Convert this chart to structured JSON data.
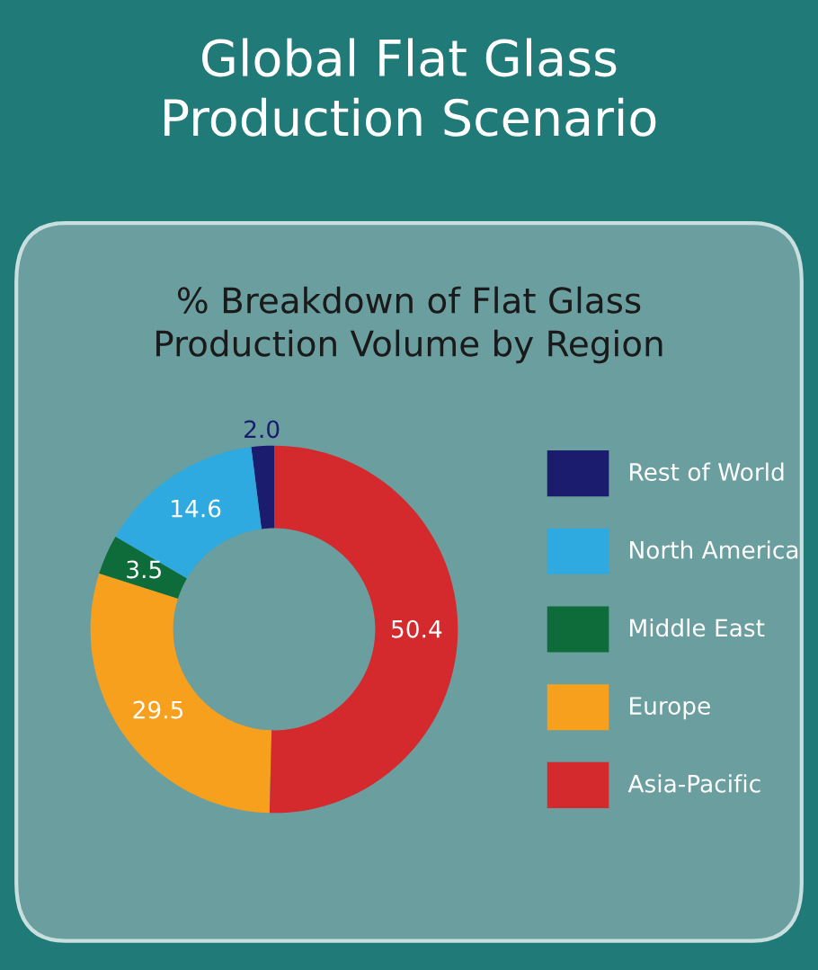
{
  "chart_data": {
    "type": "donut",
    "title": "Global Flat Glass\nProduction Scenario",
    "subtitle": "% Breakdown of Flat Glass\nProduction Volume by Region",
    "categories": [
      "Rest of World",
      "North America",
      "Middle East",
      "Europe",
      "Asia-Pacific"
    ],
    "values": [
      2.0,
      14.6,
      3.5,
      29.5,
      50.4
    ],
    "value_labels": [
      "2.0",
      "14.6",
      "3.5",
      "29.5",
      "50.4"
    ],
    "colors": [
      "#1c1c6e",
      "#2eaae1",
      "#0e6b3a",
      "#f7a01e",
      "#d42a2e"
    ],
    "legend": "right"
  }
}
